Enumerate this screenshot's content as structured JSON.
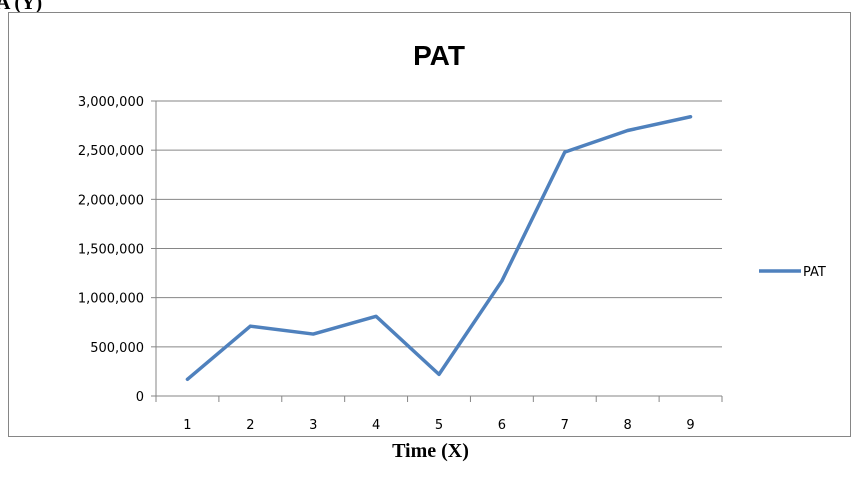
{
  "outer": {
    "ylabel": "A (Y)",
    "xlabel": "Time (X)"
  },
  "chart_data": {
    "type": "line",
    "title": "PAT",
    "xlabel": "",
    "ylabel": "",
    "categories": [
      "1",
      "2",
      "3",
      "4",
      "5",
      "6",
      "7",
      "8",
      "9"
    ],
    "ylim": [
      0,
      3000000
    ],
    "yticks": [
      0,
      500000,
      1000000,
      1500000,
      2000000,
      2500000,
      3000000
    ],
    "ytick_labels": [
      "0",
      "500,000",
      "1,000,000",
      "1,500,000",
      "2,000,000",
      "2,500,000",
      "3,000,000"
    ],
    "series": [
      {
        "name": "PAT",
        "color": "#4f81bd",
        "values": [
          170000,
          710000,
          630000,
          810000,
          220000,
          1170000,
          2480000,
          2700000,
          2840000
        ]
      }
    ],
    "grid": true,
    "legend": "right"
  }
}
